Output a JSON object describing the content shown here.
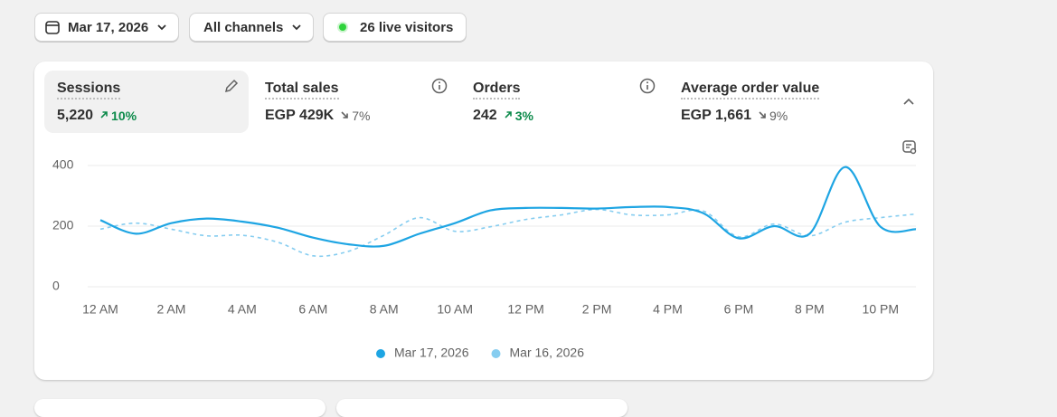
{
  "filters": {
    "date": "Mar 17, 2026",
    "channel": "All channels",
    "live": "26 live visitors"
  },
  "metrics": [
    {
      "label": "Sessions",
      "value": "5,220",
      "change": "10%",
      "direction": "up"
    },
    {
      "label": "Total sales",
      "value": "EGP 429K",
      "change": "7%",
      "direction": "down"
    },
    {
      "label": "Orders",
      "value": "242",
      "change": "3%",
      "direction": "up"
    },
    {
      "label": "Average order value",
      "value": "EGP 1,661",
      "change": "9%",
      "direction": "down"
    }
  ],
  "chart_data": {
    "type": "line",
    "categories": [
      "12 AM",
      null,
      "2 AM",
      null,
      "4 AM",
      null,
      "6 AM",
      null,
      "8 AM",
      null,
      "10 AM",
      null,
      "12 PM",
      null,
      "2 PM",
      null,
      "4 PM",
      null,
      "6 PM",
      null,
      "8 PM",
      null,
      "10 PM",
      null
    ],
    "series": [
      {
        "name": "Mar 17, 2026",
        "color": "#1ea5e3",
        "dashed": false,
        "values": [
          220,
          175,
          210,
          225,
          215,
          195,
          162,
          140,
          135,
          175,
          210,
          252,
          260,
          260,
          258,
          263,
          263,
          243,
          160,
          200,
          175,
          395,
          198,
          190
        ]
      },
      {
        "name": "Mar 16, 2026",
        "color": "#86cdf0",
        "dashed": true,
        "values": [
          190,
          210,
          190,
          168,
          170,
          147,
          102,
          117,
          170,
          228,
          183,
          198,
          222,
          237,
          255,
          237,
          237,
          250,
          165,
          207,
          168,
          213,
          228,
          240
        ]
      }
    ],
    "ylim": [
      0,
      400
    ],
    "yticks": [
      0,
      200,
      400
    ],
    "grid": true,
    "legend": "bottom"
  }
}
